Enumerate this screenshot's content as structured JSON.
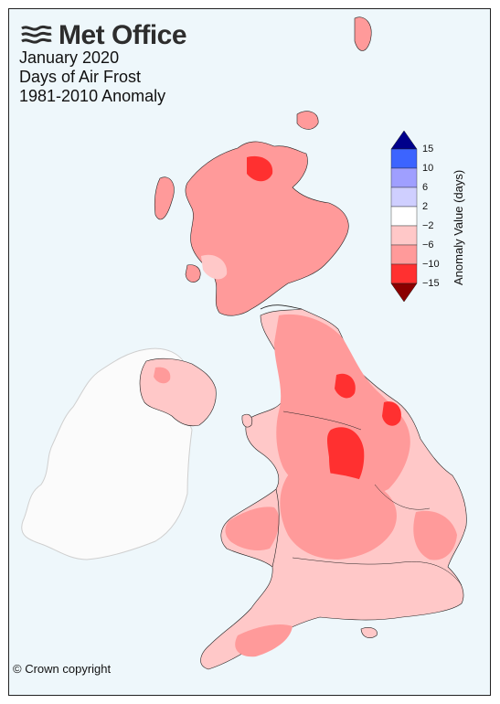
{
  "brand": {
    "name": "Met Office",
    "logo_icon": "met-office-wave-logo"
  },
  "title": {
    "line1": "January 2020",
    "line2": "Days of Air Frost",
    "line3": "1981-2010 Anomaly"
  },
  "copyright": "© Crown copyright",
  "colors": {
    "background": "#eef7fb",
    "ireland": "#fbfbfb",
    "band_neg6_neg2": "#ffc8c8",
    "band_neg10_neg6": "#ff9a9a",
    "band_neg15_neg10": "#ff3030",
    "below_neg15": "#8b0000",
    "band_2_6": "#cfcfff",
    "band_6_10": "#9f9fff",
    "band_10_15": "#3c64ff",
    "above_15": "#00008b"
  },
  "legend": {
    "title": "Anomaly Value (days)",
    "ticks": [
      "15",
      "10",
      "6",
      "2",
      "−2",
      "−6",
      "−10",
      "−15"
    ]
  }
}
